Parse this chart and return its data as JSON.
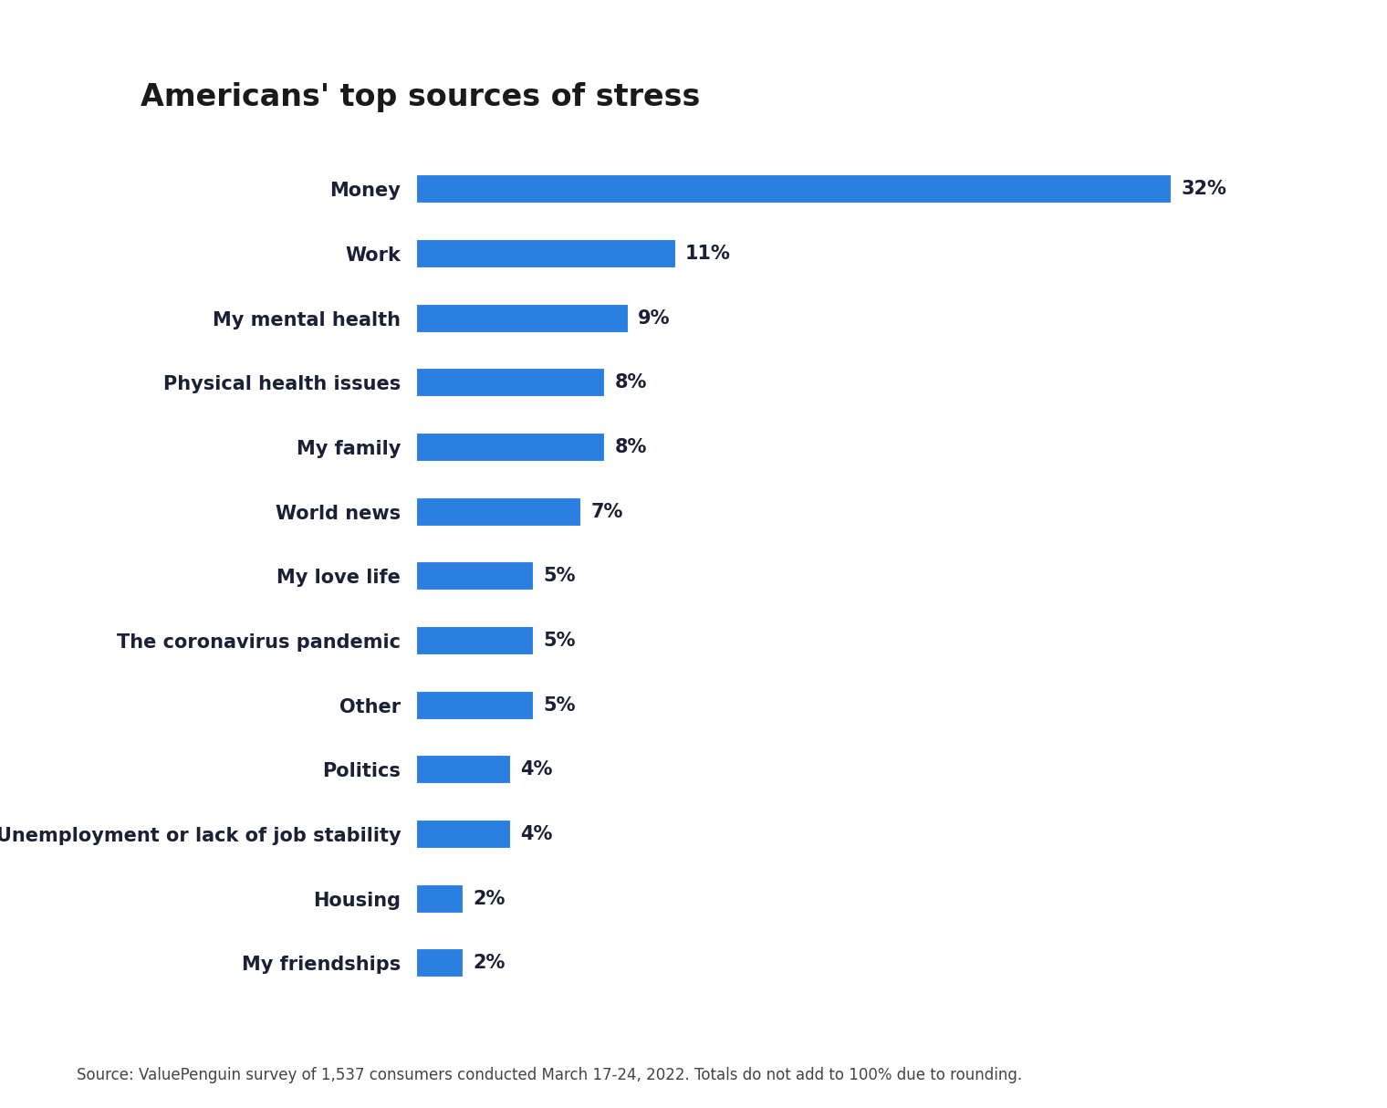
{
  "title": "Americans' top sources of stress",
  "categories": [
    "Money",
    "Work",
    "My mental health",
    "Physical health issues",
    "My family",
    "World news",
    "My love life",
    "The coronavirus pandemic",
    "Other",
    "Politics",
    "Unemployment or lack of job stability",
    "Housing",
    "My friendships"
  ],
  "values": [
    32,
    11,
    9,
    8,
    8,
    7,
    5,
    5,
    5,
    4,
    4,
    2,
    2
  ],
  "bar_color": "#2B7FE0",
  "label_color": "#1a2035",
  "title_color": "#1a1a1a",
  "background_color": "#FFFFFF",
  "source_text": "Source: ValuePenguin survey of 1,537 consumers conducted March 17-24, 2022. Totals do not add to 100% due to rounding.",
  "title_fontsize": 24,
  "label_fontsize": 15,
  "value_fontsize": 15,
  "source_fontsize": 12,
  "xlim": [
    0,
    37
  ],
  "bar_height": 0.45
}
